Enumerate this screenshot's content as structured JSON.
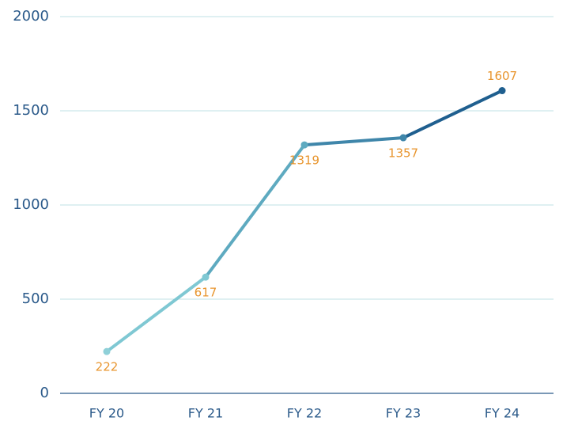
{
  "chart_data": {
    "type": "line",
    "categories": [
      "FY 20",
      "FY 21",
      "FY 22",
      "FY 23",
      "FY 24"
    ],
    "values": [
      222,
      617,
      1319,
      1357,
      1607
    ],
    "colors": [
      "#8fd0d8",
      "#7fc8d3",
      "#5eaac0",
      "#3f86aa",
      "#1f5f8f"
    ],
    "label_color": "#e8952e",
    "ylim": [
      0,
      2000
    ],
    "yticks": [
      0,
      500,
      1000,
      1500,
      2000
    ],
    "grid": true
  }
}
